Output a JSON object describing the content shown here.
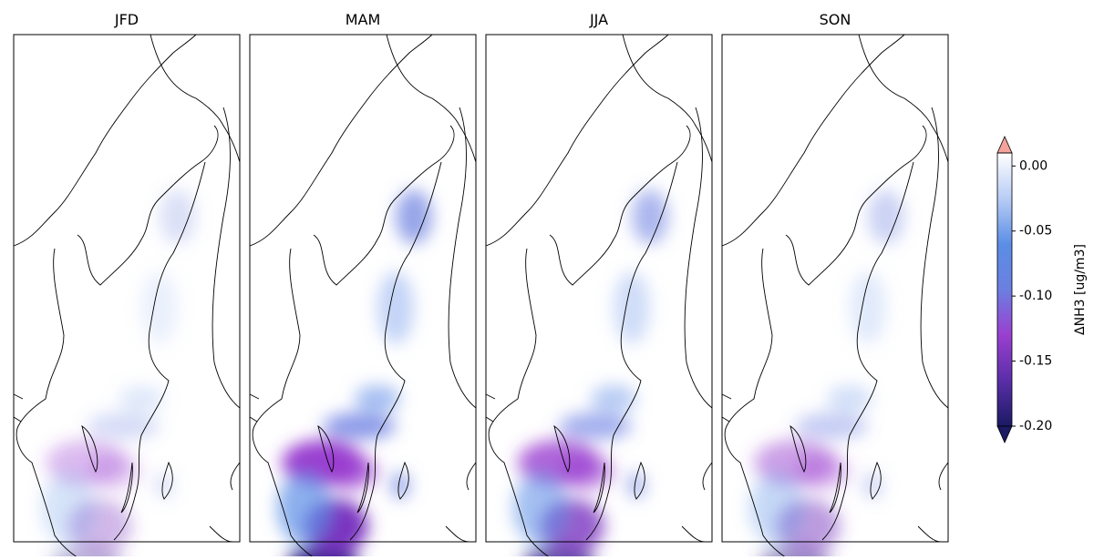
{
  "panels": [
    {
      "title": "JFD"
    },
    {
      "title": "MAM"
    },
    {
      "title": "JJA"
    },
    {
      "title": "SON"
    }
  ],
  "colorbar": {
    "label": "ΔNH3 [ug/m3]",
    "lim": [
      -0.2,
      0.01
    ],
    "ticks": [
      {
        "value": 0,
        "label": "0.00"
      },
      -0.05,
      {
        "value": -0.1,
        "label": "-0.10"
      },
      -0.15,
      {
        "value": -0.2,
        "label": "-0.20"
      }
    ],
    "colors": [
      "#1b1a63",
      "#5a2ea8",
      "#9a3fd0",
      "#6b7fe0",
      "#5b8ee6",
      "#b8cdf5",
      "#ffffff"
    ],
    "over_color": "#f3a29c",
    "under_color": "#1b1a63"
  }
}
